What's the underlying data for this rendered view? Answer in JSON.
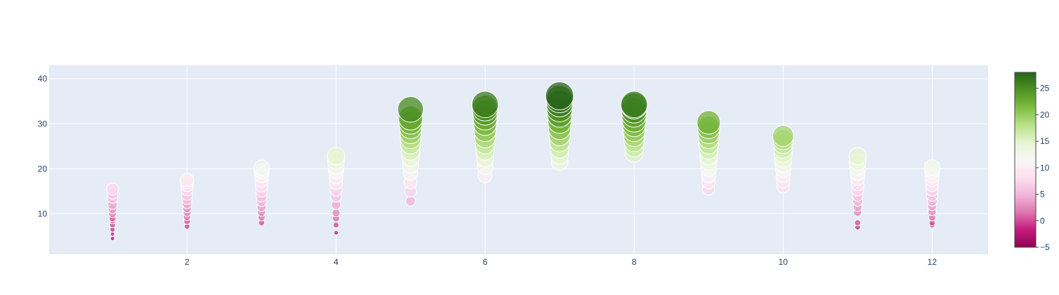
{
  "chart_data": {
    "type": "scatter",
    "title": "",
    "xlabel": "",
    "ylabel": "",
    "xlim": [
      0.15,
      12.75
    ],
    "ylim": [
      1,
      43
    ],
    "x_ticks": [
      2,
      4,
      6,
      8,
      10,
      12
    ],
    "y_ticks": [
      10,
      20,
      30,
      40
    ],
    "grid": true,
    "plot_background": "#e5ecf6",
    "grid_color": "#ffffff",
    "marker_outline": "#ffffff",
    "marker_opacity": 0.75,
    "color_encoding": "y - 8 (estimated)",
    "size_encoding": "proportional to y (estimated)",
    "colorscale": "PiYG",
    "colorscale_stops": [
      "#8e0152",
      "#c51b7d",
      "#de77ae",
      "#f1b6da",
      "#fde0ef",
      "#f7f7f7",
      "#e6f5d0",
      "#b8e186",
      "#7fbc41",
      "#4d9221",
      "#276419"
    ],
    "colorbar": {
      "min": -5,
      "max": 28,
      "ticks": [
        -5,
        0,
        5,
        10,
        15,
        20,
        25
      ],
      "placement": "right"
    },
    "points": [
      {
        "x": 1,
        "y": [
          4.5,
          5.5,
          6.5,
          7.5,
          8.5,
          9,
          10,
          11,
          12,
          13.5,
          14.5,
          15.5
        ]
      },
      {
        "x": 2,
        "y": [
          7.2,
          8.3,
          9.3,
          10.3,
          11.2,
          12.2,
          13.2,
          14.2,
          15.3,
          16.3,
          17.0,
          17.5
        ]
      },
      {
        "x": 3,
        "y": [
          8.0,
          9.2,
          10.3,
          11.5,
          12.7,
          13.8,
          15.0,
          16.2,
          17.4,
          18.5,
          19.5,
          20.2
        ]
      },
      {
        "x": 4,
        "y": [
          5.8,
          7.5,
          9.0,
          10.2,
          12.0,
          13.8,
          15.2,
          16.8,
          18.2,
          19.4,
          20.6,
          21.8,
          22.8
        ]
      },
      {
        "x": 5,
        "y": [
          12.8,
          15.0,
          17.0,
          19.0,
          20.8,
          22.5,
          24.0,
          25.5,
          26.8,
          28.0,
          29.2,
          30.3,
          31.3,
          33.2
        ]
      },
      {
        "x": 6,
        "y": [
          18.5,
          20.5,
          22.3,
          24.0,
          25.5,
          27.0,
          28.5,
          30.0,
          31.3,
          32.5,
          33.5,
          34.3
        ]
      },
      {
        "x": 7,
        "y": [
          21.5,
          23.0,
          24.5,
          26.0,
          27.5,
          29.0,
          30.5,
          32.0,
          33.3,
          34.5,
          35.5,
          36.2
        ]
      },
      {
        "x": 8,
        "y": [
          23.5,
          24.8,
          26.0,
          27.3,
          28.5,
          29.7,
          30.8,
          32.0,
          33.0,
          34.0,
          34.3
        ]
      },
      {
        "x": 9,
        "y": [
          15.5,
          17.0,
          18.5,
          20.0,
          21.5,
          22.8,
          24.2,
          25.5,
          26.8,
          28.0,
          29.2,
          30.3
        ]
      },
      {
        "x": 10,
        "y": [
          16.0,
          17.2,
          18.5,
          19.8,
          21.0,
          22.2,
          23.4,
          24.5,
          25.6,
          26.5,
          27.3
        ]
      },
      {
        "x": 11,
        "y": [
          7.0,
          8.0,
          10.3,
          11.5,
          12.8,
          14.0,
          15.3,
          16.5,
          17.8,
          19.0,
          20.3,
          21.5,
          22.8
        ]
      },
      {
        "x": 12,
        "y": [
          7.5,
          8.0,
          9.2,
          10.5,
          11.7,
          12.8,
          14.0,
          15.2,
          16.3,
          17.5,
          18.5,
          19.5,
          20.3
        ]
      }
    ]
  }
}
